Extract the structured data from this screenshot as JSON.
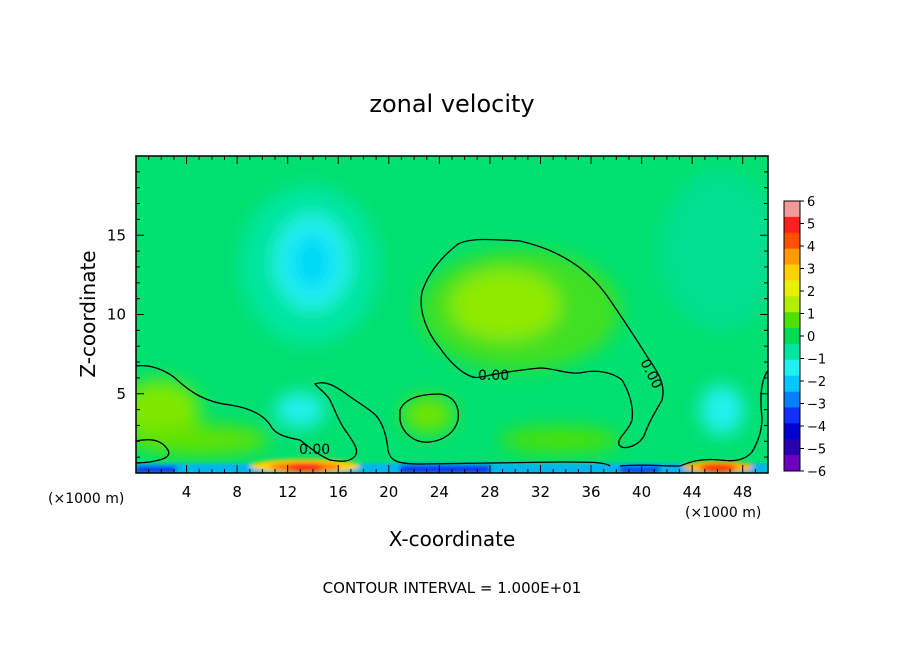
{
  "chart_data": {
    "type": "heatmap",
    "title": "zonal velocity",
    "xlabel": "X-coordinate",
    "ylabel": "Z-coordinate",
    "x_unit_label": "(×1000 m)",
    "x_ticks": [
      4,
      8,
      12,
      16,
      20,
      24,
      28,
      32,
      36,
      40,
      44,
      48
    ],
    "y_ticks": [
      5,
      10,
      15
    ],
    "xlim": [
      0,
      50
    ],
    "ylim": [
      0,
      20
    ],
    "colorbar": {
      "ticks": [
        6,
        5,
        4,
        3,
        2,
        1,
        0,
        -1,
        -2,
        -3,
        -4,
        -5,
        -6
      ],
      "tick_labels": [
        "6",
        "5",
        "4",
        "3",
        "2",
        "1",
        "0",
        "−1",
        "−2",
        "−3",
        "−4",
        "−5",
        "−6"
      ],
      "colors": [
        "#f29a9a",
        "#ff2020",
        "#ff5000",
        "#ff9a00",
        "#ffd000",
        "#e8f000",
        "#b4ee00",
        "#50e000",
        "#00dd55",
        "#00e6a0",
        "#20f0f0",
        "#00c8ff",
        "#0080ff",
        "#1030ff",
        "#0000d0",
        "#2800b0",
        "#7000c0"
      ]
    },
    "contour_label": "0.00",
    "contour_interval_text": "CONTOUR INTERVAL = 1.000E+01",
    "features": [
      {
        "name": "negative region upper-left",
        "x": 14,
        "z": 13,
        "value": -2
      },
      {
        "name": "positive region center",
        "x": 29,
        "z": 10.5,
        "value": 1
      },
      {
        "name": "strong positive near surface",
        "x": 13.5,
        "z": 0.3,
        "value": 5
      },
      {
        "name": "strong positive near surface",
        "x": 46,
        "z": 0.3,
        "value": 4
      },
      {
        "name": "strong negative at surface",
        "x": 25,
        "z": 0.2,
        "value": -5
      }
    ]
  }
}
